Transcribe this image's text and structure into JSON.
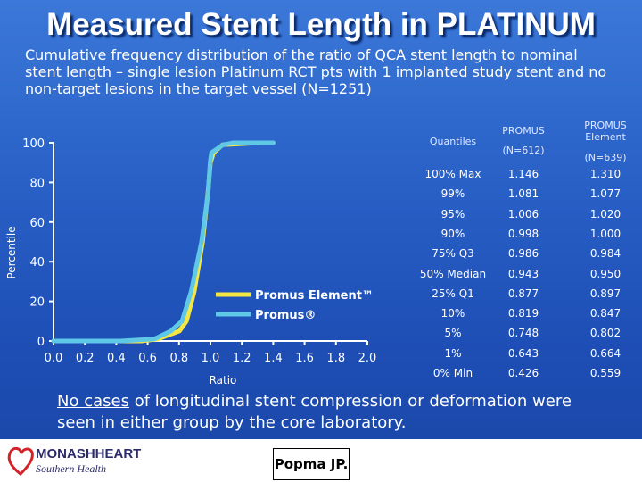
{
  "title": "Measured Stent Length in PLATINUM",
  "subtitle": "Cumulative frequency distribution of the ratio of QCA stent length to nominal stent length – single lesion Platinum RCT pts with 1 implanted study stent and no non-target lesions in the target vessel (N=1251)",
  "chart_data": {
    "type": "line",
    "title": "",
    "xlabel": "Ratio",
    "ylabel": "Percentile",
    "xlim": [
      0.0,
      2.0
    ],
    "ylim": [
      0,
      100
    ],
    "x_ticks": [
      "0.0",
      "0.2",
      "0.4",
      "0.6",
      "0.8",
      "1.0",
      "1.2",
      "1.4",
      "1.6",
      "1.8",
      "2.0"
    ],
    "y_ticks": [
      "0",
      "20",
      "40",
      "60",
      "80",
      "100"
    ],
    "grid": false,
    "legend_position": "lower-right",
    "series": [
      {
        "name": "Promus Element™",
        "color": "#f5e642",
        "x": [
          0.0,
          0.56,
          0.664,
          0.802,
          0.847,
          0.897,
          0.95,
          0.984,
          1.0,
          1.02,
          1.077,
          1.31,
          1.4
        ],
        "y": [
          0,
          0,
          1,
          5,
          10,
          25,
          50,
          75,
          90,
          95,
          99,
          100,
          100
        ]
      },
      {
        "name": "Promus®",
        "color": "#5ec8e6",
        "x": [
          0.0,
          0.426,
          0.643,
          0.748,
          0.819,
          0.877,
          0.943,
          0.986,
          0.998,
          1.006,
          1.081,
          1.146,
          1.4
        ],
        "y": [
          0,
          0,
          1,
          5,
          10,
          25,
          50,
          75,
          90,
          95,
          99,
          100,
          100
        ]
      }
    ]
  },
  "quantile_table": {
    "header": {
      "quantiles": "Quantiles",
      "promus": "PROMUS",
      "promus_n": "(N=612)",
      "promus_element": "PROMUS Element",
      "promus_element_n": "(N=639)"
    },
    "rows": [
      {
        "label": "100% Max",
        "promus": "1.146",
        "promus_element": "1.310"
      },
      {
        "label": "99%",
        "promus": "1.081",
        "promus_element": "1.077"
      },
      {
        "label": "95%",
        "promus": "1.006",
        "promus_element": "1.020"
      },
      {
        "label": "90%",
        "promus": "0.998",
        "promus_element": "1.000"
      },
      {
        "label": "75% Q3",
        "promus": "0.986",
        "promus_element": "0.984"
      },
      {
        "label": "50% Median",
        "promus": "0.943",
        "promus_element": "0.950"
      },
      {
        "label": "25% Q1",
        "promus": "0.877",
        "promus_element": "0.897"
      },
      {
        "label": "10%",
        "promus": "0.819",
        "promus_element": "0.847"
      },
      {
        "label": "5%",
        "promus": "0.748",
        "promus_element": "0.802"
      },
      {
        "label": "1%",
        "promus": "0.643",
        "promus_element": "0.664"
      },
      {
        "label": "0% Min",
        "promus": "0.426",
        "promus_element": "0.559"
      }
    ]
  },
  "footer_note": {
    "underlined": "No cases",
    "rest": " of longitudinal stent compression or deformation were seen in either group by the core laboratory."
  },
  "logo": {
    "name": "MONASHHEART",
    "sub": "Southern Health",
    "icon": "heart-outline-icon"
  },
  "author": "Popma JP."
}
